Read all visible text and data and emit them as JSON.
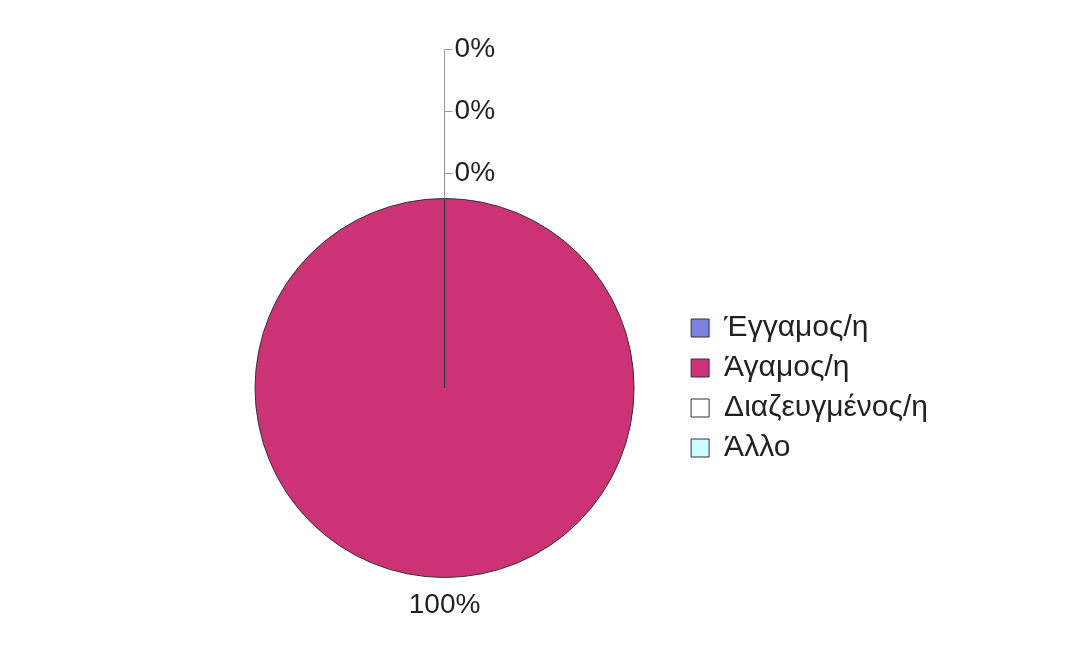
{
  "chart_data": {
    "type": "pie",
    "categories": [
      "Έγγαμος/η",
      "Άγαμος/η",
      "Διαζευγμένος/η",
      "Άλλο"
    ],
    "values": [
      0,
      100,
      0,
      0
    ],
    "colors": [
      "#8080e0",
      "#cc3377",
      "#ffffff",
      "#ccffff"
    ],
    "value_labels": [
      "0%",
      "100%",
      "0%",
      "0%"
    ],
    "legend": "right"
  }
}
